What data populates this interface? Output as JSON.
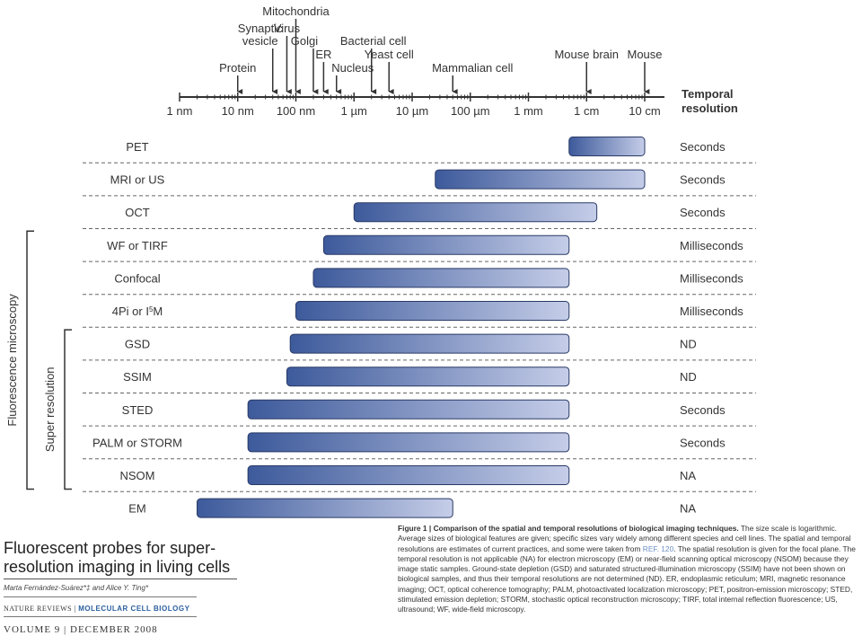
{
  "chart_data": {
    "type": "gantt-range",
    "axis": {
      "scale": "log",
      "unit": "meters",
      "ticks": [
        {
          "value": 1e-09,
          "label": "1 nm"
        },
        {
          "value": 1e-08,
          "label": "10 nm"
        },
        {
          "value": 1e-07,
          "label": "100 nm"
        },
        {
          "value": 1e-06,
          "label": "1 µm"
        },
        {
          "value": 1e-05,
          "label": "10 µm"
        },
        {
          "value": 0.0001,
          "label": "100 µm"
        },
        {
          "value": 0.001,
          "label": "1 mm"
        },
        {
          "value": 0.01,
          "label": "1 cm"
        },
        {
          "value": 0.1,
          "label": "10 cm"
        }
      ],
      "xlim": [
        1e-09,
        0.1
      ],
      "right_header": [
        "Temporal",
        "resolution"
      ]
    },
    "markers": [
      {
        "label": "Protein",
        "lines": [
          "Protein"
        ],
        "value": 1e-08
      },
      {
        "label": "Synaptic vesicle",
        "lines": [
          "Synaptic",
          "vesicle"
        ],
        "value": 4e-08
      },
      {
        "label": "Virus",
        "lines": [
          "Virus"
        ],
        "value": 7e-08
      },
      {
        "label": "Mitochondria",
        "lines": [
          "Mitochondria"
        ],
        "value": 1e-07
      },
      {
        "label": "Golgi",
        "lines": [
          "Golgi"
        ],
        "value": 2e-07
      },
      {
        "label": "ER",
        "lines": [
          "ER"
        ],
        "value": 3e-07
      },
      {
        "label": "Nucleus",
        "lines": [
          "Nucleus"
        ],
        "value": 5e-07
      },
      {
        "label": "Bacterial cell",
        "lines": [
          "Bacterial cell"
        ],
        "value": 2e-06
      },
      {
        "label": "Yeast cell",
        "lines": [
          "Yeast cell"
        ],
        "value": 4e-06
      },
      {
        "label": "Mammalian cell",
        "lines": [
          "Mammalian cell"
        ],
        "value": 5e-05
      },
      {
        "label": "Mouse brain",
        "lines": [
          "Mouse brain"
        ],
        "value": 0.01
      },
      {
        "label": "Mouse",
        "lines": [
          "Mouse"
        ],
        "value": 0.1
      }
    ],
    "rows": [
      {
        "label": "PET",
        "sup": "",
        "min": 0.005,
        "max": 0.1,
        "temporal": "Seconds"
      },
      {
        "label": "MRI or US",
        "sup": "",
        "min": 2.5e-05,
        "max": 0.1,
        "temporal": "Seconds"
      },
      {
        "label": "OCT",
        "sup": "",
        "min": 1e-06,
        "max": 0.015,
        "temporal": "Seconds"
      },
      {
        "label": "WF or TIRF",
        "sup": "",
        "min": 3e-07,
        "max": 0.005,
        "temporal": "Milliseconds"
      },
      {
        "label": "Confocal",
        "sup": "",
        "min": 2e-07,
        "max": 0.005,
        "temporal": "Milliseconds"
      },
      {
        "label": "4Pi or I",
        "sup": "5",
        "suffix": "M",
        "min": 1e-07,
        "max": 0.005,
        "temporal": "Milliseconds"
      },
      {
        "label": "GSD",
        "sup": "",
        "min": 8e-08,
        "max": 0.005,
        "temporal": "ND"
      },
      {
        "label": "SSIM",
        "sup": "",
        "min": 7e-08,
        "max": 0.005,
        "temporal": "ND"
      },
      {
        "label": "STED",
        "sup": "",
        "min": 1.5e-08,
        "max": 0.005,
        "temporal": "Seconds"
      },
      {
        "label": "PALM or STORM",
        "sup": "",
        "min": 1.5e-08,
        "max": 0.005,
        "temporal": "Seconds"
      },
      {
        "label": "NSOM",
        "sup": "",
        "min": 1.5e-08,
        "max": 0.005,
        "temporal": "NA"
      },
      {
        "label": "EM",
        "sup": "",
        "min": 2e-09,
        "max": 5e-05,
        "temporal": "NA"
      }
    ],
    "groups": [
      {
        "label": "Fluorescence microscopy",
        "from_row": 3,
        "to_row": 10
      },
      {
        "label": "Super resolution",
        "from_row": 6,
        "to_row": 10
      }
    ],
    "colors": {
      "bar_dark": "#3d5a9b",
      "bar_light": "#c5cde8",
      "bar_stroke": "#2a3a66",
      "axis": "#333333",
      "dash": "#666666"
    }
  },
  "reference": {
    "title": "Fluorescent probes for super-resolution imaging in living cells",
    "title_lines": [
      "Fluorescent probes for super-",
      "resolution imaging in living cells"
    ],
    "authors": "Marta Fernández-Suárez*‡ and Alice Y. Ting*",
    "publisher": "NATURE REVIEWS",
    "journal": "MOLECULAR CELL BIOLOGY",
    "volume": "VOLUME 9 | DECEMBER 2008"
  },
  "caption": {
    "label": "Figure 1 |",
    "title": "Comparison of the spatial and temporal resolutions of biological imaging techniques.",
    "body_before_ref": " The size scale is logarithmic. Average sizes of biological features are given; specific sizes vary widely among different species and cell lines. The spatial and temporal resolutions are estimates of current practices, and some were taken from ",
    "ref": "REF. 120",
    "body_after_ref": ". The spatial resolution is given for the focal plane. The temporal resolution is not applicable (NA) for electron microscopy (EM) or near-field scanning optical microscopy (NSOM) because they image static samples. Ground-state depletion (GSD) and saturated structured-illumination microscopy (SSIM) have not been shown on biological samples, and thus their temporal resolutions are not determined (ND). ER, endoplasmic reticulum; MRI, magnetic resonance imaging; OCT, optical coherence tomography; PALM, photoactivated localization microscopy; PET, positron-emission microscopy; STED, stimulated emission depletion; STORM, stochastic optical reconstruction microscopy; TIRF, total internal reflection fluorescence; US, ultrasound; WF, wide-field microscopy."
  }
}
